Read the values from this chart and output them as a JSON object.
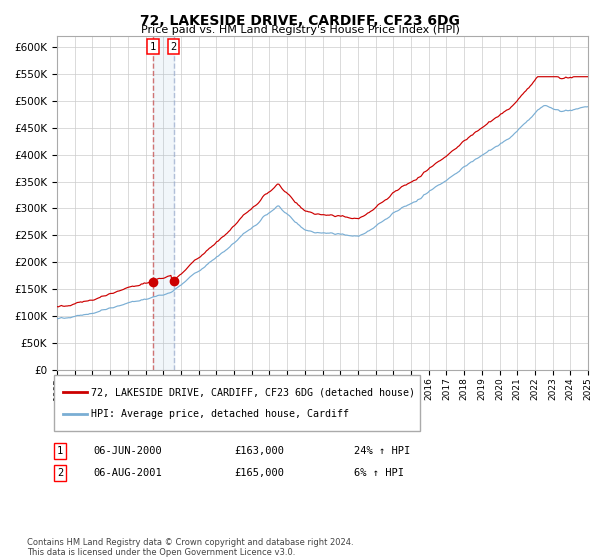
{
  "title": "72, LAKESIDE DRIVE, CARDIFF, CF23 6DG",
  "subtitle": "Price paid vs. HM Land Registry's House Price Index (HPI)",
  "legend_line1": "72, LAKESIDE DRIVE, CARDIFF, CF23 6DG (detached house)",
  "legend_line2": "HPI: Average price, detached house, Cardiff",
  "transaction1_date": "06-JUN-2000",
  "transaction1_price": 163000,
  "transaction1_hpi": "24% ↑ HPI",
  "transaction2_date": "06-AUG-2001",
  "transaction2_price": 165000,
  "transaction2_hpi": "6% ↑ HPI",
  "footnote": "Contains HM Land Registry data © Crown copyright and database right 2024.\nThis data is licensed under the Open Government Licence v3.0.",
  "hpi_color": "#7aaed4",
  "price_color": "#cc0000",
  "marker_color": "#cc0000",
  "vline1_color": "#cc6666",
  "vline2_color": "#99aacc",
  "background_color": "#ffffff",
  "grid_color": "#cccccc",
  "ylim": [
    0,
    620000
  ],
  "yticks": [
    0,
    50000,
    100000,
    150000,
    200000,
    250000,
    300000,
    350000,
    400000,
    450000,
    500000,
    550000,
    600000
  ],
  "start_year": 1995,
  "end_year": 2025
}
